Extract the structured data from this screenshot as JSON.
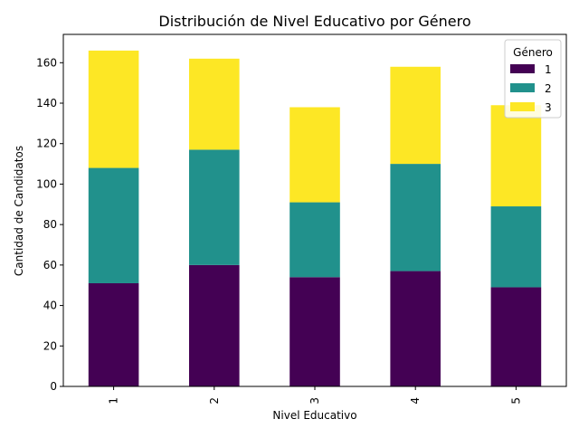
{
  "chart_data": {
    "type": "bar",
    "stacked": true,
    "title": "Distribución de Nivel Educativo por Género",
    "xlabel": "Nivel Educativo",
    "ylabel": "Cantidad de Candidatos",
    "categories": [
      "1",
      "2",
      "3",
      "4",
      "5"
    ],
    "ylim": [
      0,
      174
    ],
    "yticks": [
      0,
      20,
      40,
      60,
      80,
      100,
      120,
      140,
      160
    ],
    "grid": false,
    "legend": {
      "title": "Género",
      "placement": "top-right"
    },
    "series": [
      {
        "name": "1",
        "color": "#440154",
        "values": [
          51,
          60,
          54,
          57,
          49
        ]
      },
      {
        "name": "2",
        "color": "#21918c",
        "values": [
          57,
          57,
          37,
          53,
          40
        ]
      },
      {
        "name": "3",
        "color": "#fde725",
        "values": [
          58,
          45,
          47,
          48,
          50
        ]
      }
    ]
  }
}
